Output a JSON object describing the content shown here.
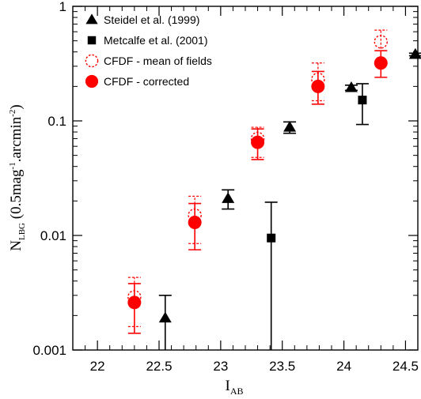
{
  "chart_data": {
    "type": "scatter",
    "xlabel": "I",
    "xlabel_sub": "AB",
    "ylabel_parts": [
      "N",
      "LBG",
      " (0.5mag",
      "-1",
      ".arcmin",
      "-2",
      ")"
    ],
    "xlim": [
      21.8,
      24.6
    ],
    "ylim": [
      0.001,
      1
    ],
    "yscale": "log",
    "x_ticks": [
      22,
      22.5,
      23,
      23.5,
      24,
      24.5
    ],
    "x_tick_labels": [
      "22",
      "22.5",
      "23",
      "23.5",
      "24",
      "24.5"
    ],
    "y_ticks": [
      0.001,
      0.01,
      0.1,
      1
    ],
    "y_tick_labels": [
      "0.001",
      "0.01",
      "0.1",
      "1"
    ],
    "legend_position": "top-left",
    "series": [
      {
        "name": "Steidel et al. (1999)",
        "marker": "triangle",
        "color": "#000000",
        "points": [
          {
            "x": 22.55,
            "y": 0.0019,
            "yerr_low": 0.0007,
            "yerr_high": 0.003
          },
          {
            "x": 23.06,
            "y": 0.021,
            "yerr_low": 0.017,
            "yerr_high": 0.025
          },
          {
            "x": 23.56,
            "y": 0.088,
            "yerr_low": 0.078,
            "yerr_high": 0.098
          },
          {
            "x": 24.06,
            "y": 0.195,
            "yerr_low": 0.185,
            "yerr_high": 0.205
          },
          {
            "x": 24.58,
            "y": 0.38,
            "yerr_low": 0.37,
            "yerr_high": 0.39
          }
        ]
      },
      {
        "name": "Metcalfe et al. (2001)",
        "marker": "square",
        "color": "#000000",
        "points": [
          {
            "x": 23.41,
            "y": 0.0095,
            "yerr_low": 0.001,
            "yerr_high": 0.0195
          },
          {
            "x": 24.15,
            "y": 0.152,
            "yerr_low": 0.093,
            "yerr_high": 0.211
          }
        ]
      },
      {
        "name": "CFDF - mean of fields",
        "marker": "open-circle",
        "color": "#ff0000",
        "points": [
          {
            "x": 22.3,
            "y": 0.0029,
            "yerr_low": 0.0016,
            "yerr_high": 0.0043
          },
          {
            "x": 22.79,
            "y": 0.015,
            "yerr_low": 0.0085,
            "yerr_high": 0.022
          },
          {
            "x": 23.3,
            "y": 0.07,
            "yerr_low": 0.048,
            "yerr_high": 0.088
          },
          {
            "x": 23.79,
            "y": 0.23,
            "yerr_low": 0.15,
            "yerr_high": 0.32
          },
          {
            "x": 24.3,
            "y": 0.49,
            "yerr_low": 0.31,
            "yerr_high": 0.62
          }
        ]
      },
      {
        "name": "CFDF - corrected",
        "marker": "filled-circle",
        "color": "#ff0000",
        "points": [
          {
            "x": 22.3,
            "y": 0.0026,
            "yerr_low": 0.0014,
            "yerr_high": 0.0038
          },
          {
            "x": 22.79,
            "y": 0.013,
            "yerr_low": 0.0075,
            "yerr_high": 0.019
          },
          {
            "x": 23.3,
            "y": 0.065,
            "yerr_low": 0.046,
            "yerr_high": 0.085
          },
          {
            "x": 23.79,
            "y": 0.2,
            "yerr_low": 0.14,
            "yerr_high": 0.27
          },
          {
            "x": 24.3,
            "y": 0.32,
            "yerr_low": 0.24,
            "yerr_high": 0.41
          }
        ]
      }
    ]
  }
}
